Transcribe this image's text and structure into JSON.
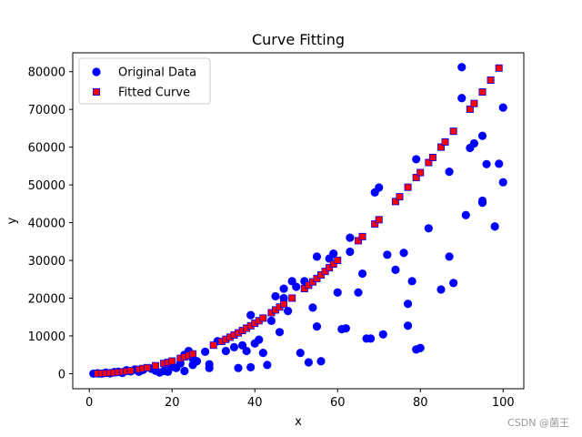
{
  "chart_data": {
    "type": "scatter",
    "title": "Curve Fitting",
    "xlabel": "x",
    "ylabel": "y",
    "xlim": [
      -4,
      105
    ],
    "ylim": [
      -4000,
      85000
    ],
    "xticks": [
      0,
      20,
      40,
      60,
      80,
      100
    ],
    "yticks": [
      0,
      10000,
      20000,
      30000,
      40000,
      50000,
      60000,
      70000,
      80000
    ],
    "grid": false,
    "legend_position": "top-left",
    "series": [
      {
        "name": "Original Data",
        "marker": "circle",
        "color": "#0000ff",
        "points": [
          [
            1,
            0
          ],
          [
            2,
            100
          ],
          [
            3,
            0
          ],
          [
            4,
            300
          ],
          [
            5,
            100
          ],
          [
            6,
            400
          ],
          [
            7,
            500
          ],
          [
            8,
            200
          ],
          [
            9,
            900
          ],
          [
            10,
            600
          ],
          [
            11,
            1100
          ],
          [
            12,
            500
          ],
          [
            13,
            1000
          ],
          [
            15,
            1300
          ],
          [
            16,
            800
          ],
          [
            17,
            300
          ],
          [
            18,
            700
          ],
          [
            19,
            1600
          ],
          [
            19,
            500
          ],
          [
            20,
            1800
          ],
          [
            21,
            1500
          ],
          [
            22,
            2700
          ],
          [
            23,
            700
          ],
          [
            23,
            5000
          ],
          [
            24,
            6000
          ],
          [
            25,
            4000
          ],
          [
            25,
            2300
          ],
          [
            26,
            3300
          ],
          [
            28,
            5800
          ],
          [
            29,
            2500
          ],
          [
            29,
            1500
          ],
          [
            31,
            8600
          ],
          [
            33,
            6000
          ],
          [
            35,
            7000
          ],
          [
            36,
            1500
          ],
          [
            37,
            7500
          ],
          [
            38,
            6000
          ],
          [
            39,
            15500
          ],
          [
            39,
            1700
          ],
          [
            40,
            8000
          ],
          [
            41,
            9000
          ],
          [
            42,
            5500
          ],
          [
            43,
            2300
          ],
          [
            44,
            14000
          ],
          [
            45,
            20500
          ],
          [
            46,
            11000
          ],
          [
            47,
            22500
          ],
          [
            47,
            20000
          ],
          [
            48,
            16600
          ],
          [
            49,
            24500
          ],
          [
            50,
            23000
          ],
          [
            51,
            5500
          ],
          [
            52,
            24500
          ],
          [
            53,
            3000
          ],
          [
            54,
            17500
          ],
          [
            55,
            12500
          ],
          [
            55,
            31000
          ],
          [
            56,
            3300
          ],
          [
            58,
            30500
          ],
          [
            59,
            31800
          ],
          [
            60,
            21500
          ],
          [
            61,
            11800
          ],
          [
            62,
            12000
          ],
          [
            63,
            36000
          ],
          [
            63,
            32300
          ],
          [
            65,
            21500
          ],
          [
            66,
            26500
          ],
          [
            67,
            9300
          ],
          [
            68,
            9300
          ],
          [
            69,
            48000
          ],
          [
            70,
            49300
          ],
          [
            71,
            10400
          ],
          [
            72,
            31500
          ],
          [
            74,
            27500
          ],
          [
            76,
            32000
          ],
          [
            77,
            12700
          ],
          [
            77,
            18500
          ],
          [
            78,
            24500
          ],
          [
            79,
            56800
          ],
          [
            79,
            6400
          ],
          [
            80,
            6800
          ],
          [
            82,
            38500
          ],
          [
            85,
            22300
          ],
          [
            87,
            53500
          ],
          [
            87,
            31000
          ],
          [
            88,
            24000
          ],
          [
            90,
            81200
          ],
          [
            90,
            73000
          ],
          [
            91,
            42000
          ],
          [
            92,
            59800
          ],
          [
            93,
            61000
          ],
          [
            95,
            63000
          ],
          [
            95,
            45800
          ],
          [
            95,
            45300
          ],
          [
            96,
            55500
          ],
          [
            98,
            39000
          ],
          [
            99,
            55600
          ],
          [
            100,
            70500
          ],
          [
            100,
            50700
          ]
        ]
      },
      {
        "name": "Fitted Curve",
        "marker": "square",
        "color": "#ff0000",
        "edge_color": "#0000ff",
        "points": [
          [
            2,
            30
          ],
          [
            3,
            60
          ],
          [
            4,
            110
          ],
          [
            5,
            180
          ],
          [
            6,
            260
          ],
          [
            7,
            360
          ],
          [
            8,
            480
          ],
          [
            9,
            620
          ],
          [
            10,
            780
          ],
          [
            12,
            1150
          ],
          [
            13,
            1360
          ],
          [
            14,
            1590
          ],
          [
            16,
            2100
          ],
          [
            18,
            2690
          ],
          [
            19,
            3000
          ],
          [
            20,
            3340
          ],
          [
            22,
            4040
          ],
          [
            23,
            4420
          ],
          [
            24,
            4810
          ],
          [
            25,
            5230
          ],
          [
            30,
            7530
          ],
          [
            32,
            8560
          ],
          [
            33,
            9100
          ],
          [
            34,
            9660
          ],
          [
            35,
            10230
          ],
          [
            36,
            10810
          ],
          [
            37,
            11420
          ],
          [
            38,
            12040
          ],
          [
            39,
            12680
          ],
          [
            40,
            13340
          ],
          [
            41,
            14020
          ],
          [
            42,
            14710
          ],
          [
            44,
            16140
          ],
          [
            45,
            16880
          ],
          [
            46,
            17640
          ],
          [
            47,
            18410
          ],
          [
            49,
            20010
          ],
          [
            52,
            22540
          ],
          [
            53,
            23420
          ],
          [
            54,
            24310
          ],
          [
            55,
            25220
          ],
          [
            56,
            26150
          ],
          [
            57,
            27090
          ],
          [
            58,
            28050
          ],
          [
            59,
            29030
          ],
          [
            60,
            30030
          ],
          [
            65,
            35220
          ],
          [
            66,
            36310
          ],
          [
            69,
            39640
          ],
          [
            70,
            40780
          ],
          [
            74,
            45610
          ],
          [
            75,
            46860
          ],
          [
            77,
            49390
          ],
          [
            79,
            51960
          ],
          [
            80,
            53270
          ],
          [
            82,
            55930
          ],
          [
            83,
            57270
          ],
          [
            85,
            60010
          ],
          [
            86,
            61390
          ],
          [
            88,
            64210
          ],
          [
            92,
            70070
          ],
          [
            93,
            71570
          ],
          [
            95,
            74620
          ],
          [
            97,
            77760
          ],
          [
            99,
            80960
          ]
        ]
      }
    ]
  },
  "watermark": "CSDN @菌王"
}
